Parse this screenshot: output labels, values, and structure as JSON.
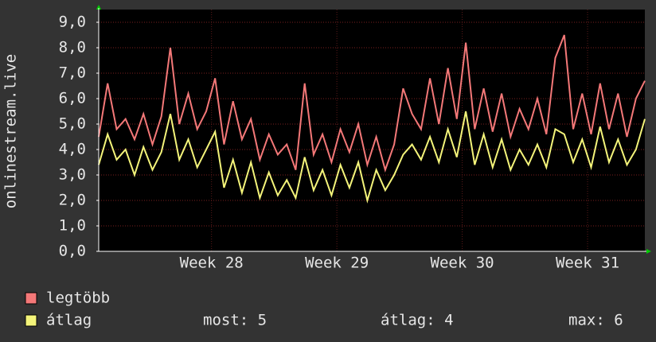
{
  "chart_data": {
    "type": "line",
    "ylabel": "onlinestream.live",
    "x": [
      0,
      0.5,
      1,
      1.5,
      2,
      2.5,
      3,
      3.5,
      4,
      4.5,
      5,
      5.5,
      6,
      6.5,
      7,
      7.5,
      8,
      8.5,
      9,
      9.5,
      10,
      10.5,
      11,
      11.5,
      12,
      12.5,
      13,
      13.5,
      14,
      14.5,
      15,
      15.5,
      16,
      16.5,
      17,
      17.5,
      18,
      18.5,
      19,
      19.5,
      20,
      20.5,
      21,
      21.5,
      22,
      22.5,
      23,
      23.5,
      24,
      24.5,
      25,
      25.5,
      26,
      26.5,
      27,
      27.5,
      28,
      28.5,
      29,
      29.5,
      30,
      30.5
    ],
    "series": [
      {
        "name": "legtöbb",
        "color": "#f47878",
        "values": [
          4.5,
          6.6,
          4.8,
          5.2,
          4.4,
          5.4,
          4.2,
          5.3,
          8.0,
          5.0,
          6.2,
          4.8,
          5.5,
          6.8,
          4.2,
          5.9,
          4.4,
          5.2,
          3.6,
          4.6,
          3.8,
          4.2,
          3.2,
          6.6,
          3.8,
          4.6,
          3.5,
          4.8,
          3.9,
          5.0,
          3.4,
          4.5,
          3.2,
          4.2,
          6.4,
          5.4,
          4.8,
          6.8,
          5.0,
          7.2,
          5.2,
          8.2,
          4.8,
          6.4,
          4.7,
          6.2,
          4.5,
          5.6,
          4.8,
          6.0,
          4.6,
          7.6,
          8.5,
          4.8,
          6.2,
          4.6,
          6.6,
          4.8,
          6.2,
          4.5,
          6.0,
          6.7
        ]
      },
      {
        "name": "átlag",
        "color": "#f4f47a",
        "values": [
          3.4,
          4.6,
          3.6,
          4.0,
          3.0,
          4.1,
          3.2,
          3.9,
          5.4,
          3.6,
          4.4,
          3.3,
          4.0,
          4.7,
          2.5,
          3.6,
          2.3,
          3.5,
          2.1,
          3.1,
          2.2,
          2.8,
          2.1,
          3.7,
          2.4,
          3.2,
          2.2,
          3.4,
          2.5,
          3.5,
          2.0,
          3.2,
          2.4,
          3.0,
          3.8,
          4.2,
          3.6,
          4.5,
          3.5,
          4.8,
          3.7,
          5.5,
          3.4,
          4.6,
          3.3,
          4.4,
          3.2,
          4.0,
          3.4,
          4.2,
          3.3,
          4.8,
          4.6,
          3.5,
          4.4,
          3.3,
          4.9,
          3.5,
          4.4,
          3.4,
          4.0,
          5.2
        ]
      }
    ],
    "xlim": [
      0,
      30.5
    ],
    "xticks": [
      {
        "value": 6.3,
        "label": "Week 28"
      },
      {
        "value": 13.3,
        "label": "Week 29"
      },
      {
        "value": 20.3,
        "label": "Week 30"
      },
      {
        "value": 27.3,
        "label": "Week 31"
      }
    ],
    "ylim": [
      0,
      9
    ],
    "yticks": [
      {
        "value": 0,
        "label": "0,0"
      },
      {
        "value": 1,
        "label": "1,0"
      },
      {
        "value": 2,
        "label": "2,0"
      },
      {
        "value": 3,
        "label": "3,0"
      },
      {
        "value": 4,
        "label": "4,0"
      },
      {
        "value": 5,
        "label": "5,0"
      },
      {
        "value": 6,
        "label": "6,0"
      },
      {
        "value": 7,
        "label": "7,0"
      },
      {
        "value": 8,
        "label": "8,0"
      },
      {
        "value": 9,
        "label": "9,0"
      }
    ],
    "grid": true,
    "stats": [
      "most: 5",
      "átlag: 4",
      "max: 6"
    ]
  }
}
